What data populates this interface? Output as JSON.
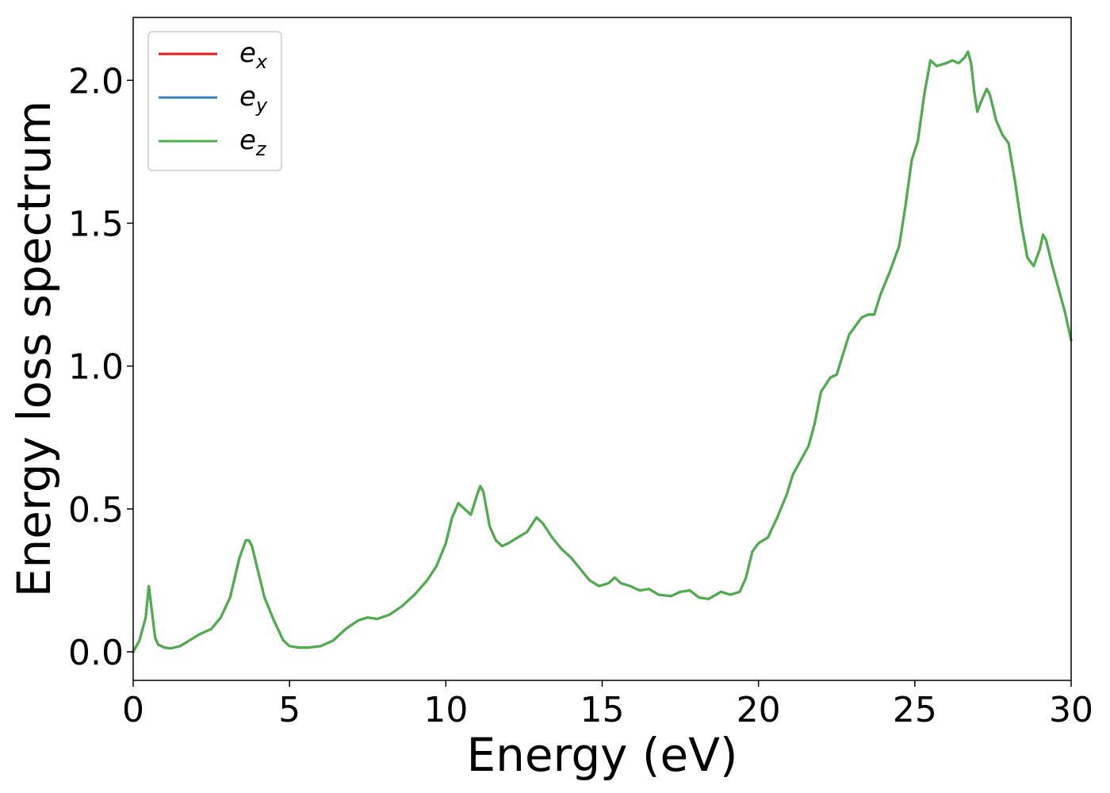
{
  "chart_data": {
    "type": "line",
    "xlabel": "Energy (eV)",
    "ylabel": "Energy loss spectrum",
    "xlim": [
      0,
      30
    ],
    "ylim": [
      -0.1,
      2.22
    ],
    "xticks": [
      "0",
      "5",
      "10",
      "15",
      "20",
      "25",
      "30"
    ],
    "xtick_values": [
      0,
      5,
      10,
      15,
      20,
      25,
      30
    ],
    "yticks": [
      "0.0",
      "0.5",
      "1.0",
      "1.5",
      "2.0"
    ],
    "ytick_values": [
      0.0,
      0.5,
      1.0,
      1.5,
      2.0
    ],
    "grid": false,
    "legend_position": "top-left",
    "series": [
      {
        "name": "e_x",
        "label_base": "e",
        "label_sub": "x",
        "color": "#e41a1c"
      },
      {
        "name": "e_y",
        "label_base": "e",
        "label_sub": "y",
        "color": "#377eb8"
      },
      {
        "name": "e_z",
        "label_base": "e",
        "label_sub": "z",
        "color": "#4daf4a"
      }
    ],
    "x": [
      0.0,
      0.2,
      0.4,
      0.5,
      0.6,
      0.7,
      0.8,
      1.0,
      1.2,
      1.5,
      1.8,
      2.1,
      2.5,
      2.8,
      3.1,
      3.4,
      3.6,
      3.7,
      3.8,
      4.0,
      4.2,
      4.5,
      4.8,
      5.0,
      5.3,
      5.6,
      6.0,
      6.4,
      6.8,
      7.2,
      7.5,
      7.8,
      8.2,
      8.6,
      9.0,
      9.4,
      9.7,
      10.0,
      10.2,
      10.4,
      10.6,
      10.8,
      11.0,
      11.1,
      11.2,
      11.4,
      11.6,
      11.8,
      12.0,
      12.3,
      12.6,
      12.9,
      13.1,
      13.4,
      13.7,
      14.0,
      14.3,
      14.6,
      14.9,
      15.2,
      15.4,
      15.6,
      15.9,
      16.2,
      16.5,
      16.8,
      17.2,
      17.5,
      17.8,
      18.1,
      18.4,
      18.8,
      19.1,
      19.4,
      19.6,
      19.8,
      20.0,
      20.3,
      20.6,
      20.9,
      21.1,
      21.4,
      21.6,
      21.8,
      22.0,
      22.3,
      22.5,
      22.7,
      22.9,
      23.1,
      23.3,
      23.5,
      23.7,
      23.9,
      24.2,
      24.5,
      24.7,
      24.9,
      25.1,
      25.3,
      25.5,
      25.7,
      26.0,
      26.2,
      26.4,
      26.6,
      26.7,
      26.8,
      26.9,
      27.0,
      27.1,
      27.3,
      27.4,
      27.6,
      27.8,
      28.0,
      28.2,
      28.4,
      28.6,
      28.8,
      29.0,
      29.1,
      29.2,
      29.4,
      29.6,
      29.8,
      30.0
    ],
    "values": [
      0.0,
      0.04,
      0.12,
      0.23,
      0.14,
      0.05,
      0.025,
      0.015,
      0.012,
      0.02,
      0.04,
      0.06,
      0.08,
      0.12,
      0.19,
      0.33,
      0.39,
      0.39,
      0.37,
      0.28,
      0.19,
      0.11,
      0.04,
      0.02,
      0.015,
      0.015,
      0.02,
      0.04,
      0.08,
      0.11,
      0.12,
      0.115,
      0.13,
      0.16,
      0.2,
      0.25,
      0.3,
      0.38,
      0.47,
      0.52,
      0.5,
      0.48,
      0.55,
      0.58,
      0.56,
      0.44,
      0.39,
      0.37,
      0.38,
      0.4,
      0.42,
      0.47,
      0.45,
      0.4,
      0.36,
      0.33,
      0.29,
      0.25,
      0.23,
      0.24,
      0.26,
      0.24,
      0.23,
      0.215,
      0.22,
      0.2,
      0.195,
      0.21,
      0.215,
      0.19,
      0.185,
      0.21,
      0.2,
      0.21,
      0.26,
      0.35,
      0.38,
      0.4,
      0.47,
      0.55,
      0.62,
      0.68,
      0.72,
      0.8,
      0.91,
      0.96,
      0.97,
      1.04,
      1.11,
      1.14,
      1.17,
      1.18,
      1.18,
      1.25,
      1.33,
      1.42,
      1.56,
      1.72,
      1.79,
      1.95,
      2.07,
      2.05,
      2.06,
      2.07,
      2.06,
      2.08,
      2.1,
      2.06,
      1.96,
      1.89,
      1.92,
      1.97,
      1.95,
      1.86,
      1.81,
      1.78,
      1.65,
      1.5,
      1.38,
      1.35,
      1.41,
      1.46,
      1.44,
      1.35,
      1.27,
      1.19,
      1.09
    ]
  }
}
